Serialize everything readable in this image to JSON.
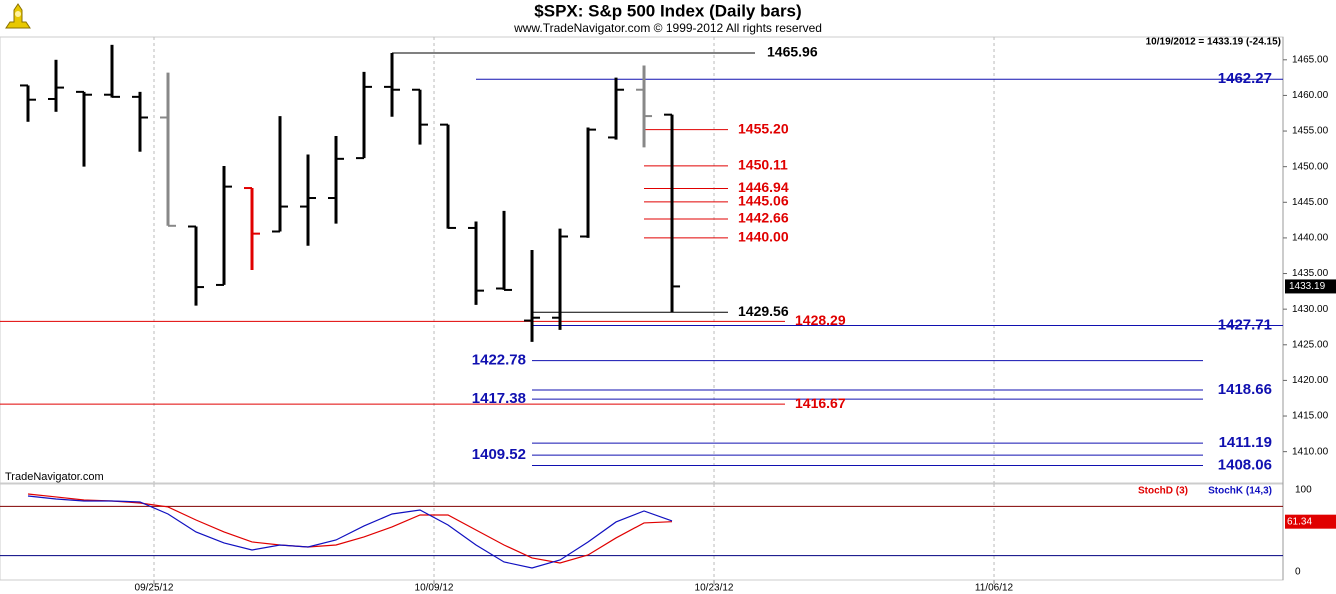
{
  "chart_data": [
    {
      "type": "ohlc",
      "title": "$SPX:  S&p 500 Index  (Daily bars)",
      "subtitle": "www.TradeNavigator.com © 1999-2012 All rights reserved",
      "info": "10/19/2012 = 1433.19 (-24.15)",
      "watermark": "TradeNavigator.com",
      "x": [
        0,
        1,
        2,
        3,
        4,
        5,
        6,
        7,
        8,
        9,
        10,
        11,
        12,
        13,
        14,
        15,
        16,
        17,
        18,
        19,
        20,
        21,
        22,
        23
      ],
      "open": [
        1461.4,
        1459.5,
        1460.5,
        1460.1,
        1459.8,
        1456.9,
        1441.6,
        1433.4,
        1447.0,
        1440.9,
        1444.4,
        1445.6,
        1451.2,
        1461.2,
        1460.8,
        1455.9,
        1441.4,
        1432.9,
        1428.4,
        1428.8,
        1440.2,
        1454.1,
        1460.8,
        1457.3
      ],
      "high": [
        1461.4,
        1465.0,
        1460.5,
        1467.1,
        1460.5,
        1463.2,
        1441.6,
        1450.1,
        1447.0,
        1457.1,
        1451.7,
        1454.3,
        1463.3,
        1465.96,
        1460.8,
        1455.9,
        1442.3,
        1443.8,
        1438.3,
        1441.3,
        1455.5,
        1462.5,
        1464.2,
        1457.3
      ],
      "low": [
        1456.3,
        1457.7,
        1450.0,
        1459.7,
        1452.1,
        1441.7,
        1430.5,
        1433.4,
        1435.5,
        1440.9,
        1438.9,
        1442.0,
        1451.2,
        1457.0,
        1453.1,
        1441.3,
        1430.6,
        1432.7,
        1425.4,
        1427.1,
        1440.0,
        1453.8,
        1452.7,
        1429.56
      ],
      "close": [
        1459.4,
        1461.1,
        1460.1,
        1459.8,
        1456.9,
        1441.7,
        1433.1,
        1447.2,
        1440.6,
        1444.4,
        1445.6,
        1451.1,
        1461.2,
        1460.8,
        1455.9,
        1441.4,
        1432.6,
        1432.7,
        1428.8,
        1440.2,
        1455.2,
        1460.8,
        1457.1,
        1433.19
      ],
      "colors": [
        "#000000",
        "#000000",
        "#000000",
        "#000000",
        "#000000",
        "#888888",
        "#000000",
        "#000000",
        "#e00000",
        "#000000",
        "#000000",
        "#000000",
        "#000000",
        "#000000",
        "#000000",
        "#000000",
        "#000000",
        "#000000",
        "#000000",
        "#000000",
        "#000000",
        "#000000",
        "#888888",
        "#000000"
      ],
      "levels": {
        "values": [
          1465.96,
          1462.27,
          1455.2,
          1450.11,
          1446.94,
          1445.06,
          1442.66,
          1440,
          1429.56,
          1428.29,
          1427.71,
          1422.78,
          1418.66,
          1417.38,
          1416.67,
          1411.19,
          1409.52,
          1408.06
        ],
        "value_labels": [
          "1465.96",
          "1462.27",
          "1455.20",
          "1450.11",
          "1446.94",
          "1445.06",
          "1442.66",
          "1440.00",
          "1429.56",
          "1428.29",
          "1427.71",
          "1422.78",
          "1418.66",
          "1417.38",
          "1416.67",
          "1411.19",
          "1409.52",
          "1408.06"
        ],
        "colors": [
          "#000000",
          "#1010b0",
          "#e00000",
          "#e00000",
          "#e00000",
          "#e00000",
          "#e00000",
          "#e00000",
          "#000000",
          "#e00000",
          "#1010b0",
          "#1010b0",
          "#1010b0",
          "#1010b0",
          "#e00000",
          "#1010b0",
          "#1010b0",
          "#1010b0"
        ]
      },
      "xlim": [
        -1,
        44.82
      ],
      "xticks": [
        {
          "value": 4.5,
          "label": "09/25/12"
        },
        {
          "value": 14.5,
          "label": "10/09/12"
        },
        {
          "value": 24.5,
          "label": "10/23/12"
        },
        {
          "value": 34.5,
          "label": "11/06/12"
        }
      ],
      "ylim": [
        1405.6,
        1468.2
      ],
      "yticks": [
        {
          "value": 1410,
          "label": "1410.00"
        },
        {
          "value": 1415,
          "label": "1415.00"
        },
        {
          "value": 1420,
          "label": "1420.00"
        },
        {
          "value": 1425,
          "label": "1425.00"
        },
        {
          "value": 1430,
          "label": "1430.00"
        },
        {
          "value": 1435,
          "label": "1435.00"
        },
        {
          "value": 1440,
          "label": "1440.00"
        },
        {
          "value": 1445,
          "label": "1445.00"
        },
        {
          "value": 1450,
          "label": "1450.00"
        },
        {
          "value": 1455,
          "label": "1455.00"
        },
        {
          "value": 1460,
          "label": "1460.00"
        },
        {
          "value": 1465,
          "label": "1465.00"
        }
      ],
      "grid": true
    },
    {
      "type": "line",
      "series": [
        {
          "name": "StochD (3)",
          "color": "#e00000",
          "values": [
            95.1,
            91.5,
            87.8,
            86.6,
            84.1,
            79.3,
            63.4,
            48.8,
            36.6,
            32.9,
            30.5,
            32.9,
            42.7,
            54.9,
            69.5,
            69.5,
            51.2,
            32.9,
            17.1,
            11.0,
            20.7,
            41.5,
            59.8,
            61.34
          ]
        },
        {
          "name": "StochK (14,3)",
          "color": "#1010c0",
          "values": [
            92.7,
            89.0,
            86.6,
            86.6,
            85.4,
            70.7,
            48.8,
            35.4,
            26.8,
            32.9,
            30.5,
            39.0,
            56.1,
            70.7,
            75.6,
            57.3,
            32.9,
            12.2,
            4.9,
            14.6,
            36.6,
            61.0,
            74.4,
            62.2
          ]
        }
      ],
      "ylim": [
        -9.8,
        107.3
      ],
      "yticks": [
        0,
        100
      ],
      "reference_lines": [
        80,
        20
      ],
      "reference_colors": [
        "#800000",
        "#000080"
      ]
    }
  ]
}
